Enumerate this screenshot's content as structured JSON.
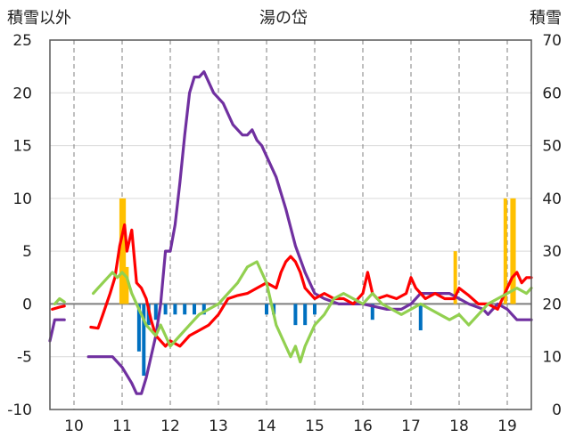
{
  "chart_data": {
    "type": "line",
    "title": "湯の岱",
    "left_axis_label": "積雪以外",
    "right_axis_label": "積雪",
    "ylim_left": [
      -10,
      25
    ],
    "ylim_right": [
      0,
      70
    ],
    "left_ticks": [
      "25",
      "20",
      "15",
      "10",
      "5",
      "0",
      "-5",
      "-10"
    ],
    "right_ticks": [
      "70",
      "60",
      "50",
      "40",
      "30",
      "20",
      "10",
      "0"
    ],
    "xlim": [
      9.5,
      19.5
    ],
    "x_tick_values": [
      10,
      11,
      12,
      13,
      14,
      15,
      16,
      17,
      18,
      19
    ],
    "x_tick_labels": [
      "10",
      "11",
      "12",
      "13",
      "14",
      "15",
      "16",
      "17",
      "18",
      "19"
    ],
    "grid": "dashed vertical at each day, solid horizontal gridlines",
    "colors": {
      "snow_depth": "#7030A0",
      "temperature": "#FF0000",
      "wind": "#92D050",
      "snowfall_bar": "#FFC000",
      "minus_bar": "#0070C0",
      "zero_line": "#7F7F7F"
    },
    "series": [
      {
        "axis": "right",
        "color": "#7030A0",
        "line": true,
        "x": [
          9.5,
          9.55,
          9.6,
          9.8,
          9.9,
          10.3,
          10.5,
          10.8,
          11.0,
          11.2,
          11.3,
          11.4,
          11.5,
          11.6,
          11.7,
          11.8,
          11.9,
          12.0,
          12.1,
          12.2,
          12.3,
          12.4,
          12.5,
          12.6,
          12.7,
          12.8,
          12.9,
          13.0,
          13.1,
          13.2,
          13.3,
          13.4,
          13.5,
          13.6,
          13.7,
          13.8,
          13.9,
          14.0,
          14.2,
          14.4,
          14.6,
          14.8,
          15.0,
          15.2,
          15.5,
          16.0,
          16.5,
          16.8,
          17.0,
          17.2,
          17.5,
          17.8,
          18.0,
          18.2,
          18.5,
          18.6,
          18.8,
          19.0,
          19.2,
          19.4,
          19.5
        ],
        "y": [
          13,
          15,
          17,
          17,
          null,
          10,
          10,
          10,
          8,
          5,
          3,
          3,
          6,
          10,
          14,
          20,
          30,
          30,
          35,
          43,
          52,
          60,
          63,
          63,
          64,
          62,
          60,
          59,
          58,
          56,
          54,
          53,
          52,
          52,
          53,
          51,
          50,
          48,
          44,
          38,
          31,
          26,
          22,
          21,
          20,
          20,
          19,
          19,
          20,
          22,
          22,
          22,
          21,
          20,
          19,
          18,
          20,
          19,
          17,
          17,
          17
        ]
      },
      {
        "axis": "left",
        "color": "#FF0000",
        "line": true,
        "x": [
          9.55,
          9.7,
          9.8,
          null,
          10.35,
          10.5,
          10.6,
          10.75,
          10.85,
          10.95,
          11.05,
          11.1,
          11.15,
          11.2,
          11.3,
          11.4,
          11.5,
          11.6,
          11.7,
          11.8,
          11.9,
          12.0,
          12.2,
          12.4,
          12.6,
          12.8,
          13.0,
          13.2,
          13.4,
          13.6,
          13.8,
          14.0,
          14.2,
          14.3,
          14.4,
          14.5,
          14.6,
          14.7,
          14.8,
          14.9,
          15.0,
          15.2,
          15.4,
          15.6,
          15.8,
          16.0,
          16.1,
          16.2,
          16.3,
          16.5,
          16.7,
          16.9,
          17.0,
          17.1,
          17.3,
          17.5,
          17.7,
          17.9,
          18.0,
          18.2,
          18.4,
          18.6,
          18.8,
          19.0,
          19.1,
          19.2,
          19.3,
          19.4,
          19.5
        ],
        "y": [
          -0.5,
          -0.3,
          -0.2,
          null,
          -2.2,
          -2.3,
          -1.0,
          1.0,
          2.5,
          5.5,
          7.5,
          5.0,
          6.0,
          7.0,
          2.0,
          1.5,
          0.5,
          -1.5,
          -3.0,
          -3.5,
          -4.0,
          -3.5,
          -4.0,
          -3.0,
          -2.5,
          -2.0,
          -1.0,
          0.5,
          0.8,
          1.0,
          1.5,
          2.0,
          1.5,
          3.0,
          4.0,
          4.5,
          4.0,
          3.0,
          1.5,
          1.0,
          0.5,
          1.0,
          0.5,
          0.5,
          0.0,
          1.0,
          3.0,
          1.0,
          0.5,
          0.8,
          0.5,
          1.0,
          2.5,
          1.5,
          0.5,
          1.0,
          0.5,
          0.5,
          1.5,
          0.8,
          0.0,
          0.0,
          -0.5,
          1.5,
          2.5,
          3.0,
          2.0,
          2.5,
          2.5
        ]
      },
      {
        "axis": "left",
        "color": "#92D050",
        "line": true,
        "x": [
          9.6,
          9.7,
          9.8,
          null,
          10.4,
          10.5,
          10.6,
          10.7,
          10.8,
          10.9,
          11.0,
          11.1,
          11.2,
          11.3,
          11.4,
          11.5,
          11.6,
          11.7,
          11.8,
          11.9,
          12.0,
          12.2,
          12.4,
          12.6,
          12.8,
          13.0,
          13.2,
          13.4,
          13.6,
          13.8,
          13.9,
          14.0,
          14.1,
          14.2,
          14.3,
          14.4,
          14.5,
          14.6,
          14.7,
          14.8,
          14.9,
          15.0,
          15.2,
          15.4,
          15.6,
          15.8,
          16.0,
          16.2,
          16.4,
          16.6,
          16.8,
          17.0,
          17.2,
          17.4,
          17.6,
          17.8,
          18.0,
          18.2,
          18.4,
          18.6,
          18.8,
          19.0,
          19.2,
          19.4,
          19.5
        ],
        "y": [
          0.0,
          0.5,
          0.2,
          null,
          1.0,
          1.5,
          2.0,
          2.5,
          3.0,
          2.5,
          3.0,
          2.5,
          1.0,
          0.0,
          -1.0,
          -2.0,
          -2.5,
          -3.0,
          -2.0,
          -3.0,
          -4.0,
          -3.0,
          -2.0,
          -1.0,
          -0.5,
          0.0,
          1.0,
          2.0,
          3.5,
          4.0,
          3.0,
          2.0,
          0.0,
          -2.0,
          -3.0,
          -4.0,
          -5.0,
          -4.0,
          -5.5,
          -4.0,
          -3.0,
          -2.0,
          -1.0,
          0.5,
          1.0,
          0.5,
          0.0,
          1.0,
          0.0,
          -0.5,
          -1.0,
          -0.5,
          0.0,
          -0.5,
          -1.0,
          -1.5,
          -1.0,
          -2.0,
          -1.0,
          0.0,
          0.5,
          1.0,
          1.5,
          1.0,
          1.5
        ]
      }
    ],
    "bars": [
      {
        "axis": "right",
        "color": "#FFC000",
        "x": [
          10.98,
          11.04,
          11.1,
          17.92,
          18.96,
          19.1,
          19.14
        ],
        "y": [
          40,
          40,
          27,
          30,
          40,
          40,
          40
        ]
      },
      {
        "axis": "left",
        "color": "#0070C0",
        "x": [
          11.35,
          11.45,
          11.55,
          11.7,
          11.9,
          12.1,
          12.3,
          12.5,
          12.7,
          14.0,
          14.15,
          14.6,
          14.8,
          15.0,
          16.2,
          17.2
        ],
        "y": [
          -4.5,
          -6.8,
          -2.0,
          -1.5,
          -1.0,
          -1.0,
          -1.0,
          -1.0,
          -1.0,
          -1.0,
          -1.0,
          -2.0,
          -2.0,
          -1.0,
          -1.5,
          -2.5
        ]
      }
    ]
  }
}
